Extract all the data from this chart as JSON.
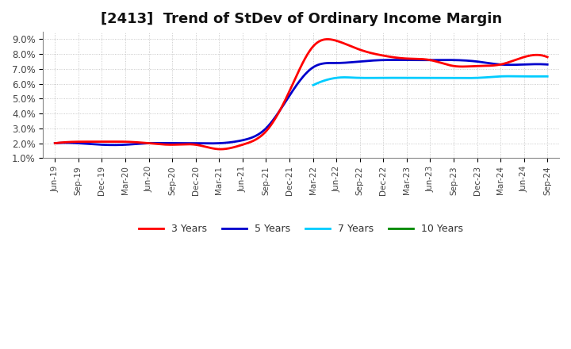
{
  "title": "[2413]  Trend of StDev of Ordinary Income Margin",
  "ylim": [
    0.01,
    0.095
  ],
  "yticks": [
    0.01,
    0.02,
    0.03,
    0.04,
    0.05,
    0.06,
    0.07,
    0.08,
    0.09
  ],
  "ytick_labels": [
    "1.0%",
    "2.0%",
    "3.0%",
    "4.0%",
    "5.0%",
    "6.0%",
    "7.0%",
    "8.0%",
    "9.0%"
  ],
  "background_color": "#ffffff",
  "plot_bg_color": "#ffffff",
  "grid_color": "#aaaaaa",
  "title_fontsize": 13,
  "legend_labels": [
    "3 Years",
    "5 Years",
    "7 Years",
    "10 Years"
  ],
  "legend_colors": [
    "#ff0000",
    "#0000cc",
    "#00ccff",
    "#008800"
  ],
  "line_width": 2.0,
  "x_labels": [
    "Jun-19",
    "Sep-19",
    "Dec-19",
    "Mar-20",
    "Jun-20",
    "Sep-20",
    "Dec-20",
    "Mar-21",
    "Jun-21",
    "Sep-21",
    "Dec-21",
    "Mar-22",
    "Jun-22",
    "Sep-22",
    "Dec-22",
    "Mar-23",
    "Jun-23",
    "Sep-23",
    "Dec-23",
    "Mar-24",
    "Jun-24",
    "Sep-24"
  ]
}
